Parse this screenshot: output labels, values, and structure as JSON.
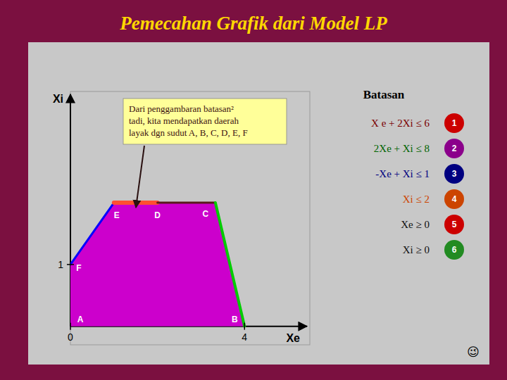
{
  "chart_data": {
    "type": "feasible_region",
    "title": "Pemecahan Grafik dari Model LP",
    "title_color": "#FFD700",
    "background": "#7B1040",
    "panel_color": "#C8C8C8",
    "xlabel": "Xe",
    "ylabel": "Xi",
    "xlim": [
      0,
      5.5
    ],
    "ylim": [
      -0.3,
      3.8
    ],
    "xticks": [
      0,
      4
    ],
    "yticks": [
      1
    ],
    "region": {
      "color": "#CC00CC",
      "x": [
        0,
        4,
        3.33,
        2.0,
        1.0,
        0
      ],
      "y": [
        0,
        0,
        2.0,
        2.0,
        2.0,
        1.0
      ]
    },
    "series": [
      {
        "color": "blue",
        "x": [
          0,
          1
        ],
        "values": [
          1,
          2
        ]
      },
      {
        "color": "#FF5030",
        "x": [
          1,
          2
        ],
        "values": [
          2,
          2
        ]
      },
      {
        "color": "#5A1A1A",
        "x": [
          2,
          3.33
        ],
        "values": [
          2,
          2
        ]
      },
      {
        "color": "#00CC00",
        "x": [
          3.33,
          4
        ],
        "values": [
          2,
          0
        ]
      }
    ],
    "points": {
      "labels": [
        "A",
        "B",
        "C",
        "D",
        "E",
        "F"
      ],
      "x": [
        0,
        4,
        3.33,
        2.0,
        1.0,
        0
      ],
      "values": [
        0,
        0,
        2.0,
        2.0,
        2.0,
        1.0
      ]
    },
    "annotation": {
      "text": "Dari penggambaran batasan²\ntadi, kita mendapatkan daerah\nlayak dgn sudut A, B, C, D, E, F",
      "color": "#FFFF99"
    },
    "constraints_title": "Batasan",
    "constraints": [
      {
        "text": "X e + 2Xi ≤ 6",
        "color": "#7B0000",
        "num": "1",
        "num_bg": "#CC0000"
      },
      {
        "text": "2Xe + Xi ≤ 8",
        "color": "#006400",
        "num": "2",
        "num_bg": "#8B008B"
      },
      {
        "text": "-Xe + Xi ≤ 1",
        "color": "#000080",
        "num": "3",
        "num_bg": "#000080"
      },
      {
        "text": "Xi ≤ 2",
        "color": "#CC4400",
        "num": "4",
        "num_bg": "#CC4400"
      },
      {
        "text": "Xe ≥ 0",
        "color": "#111111",
        "num": "5",
        "num_bg": "#CC0000"
      },
      {
        "text": "Xi ≥ 0",
        "color": "#111111",
        "num": "6",
        "num_bg": "#228B22"
      }
    ],
    "corner_text": "😉"
  }
}
